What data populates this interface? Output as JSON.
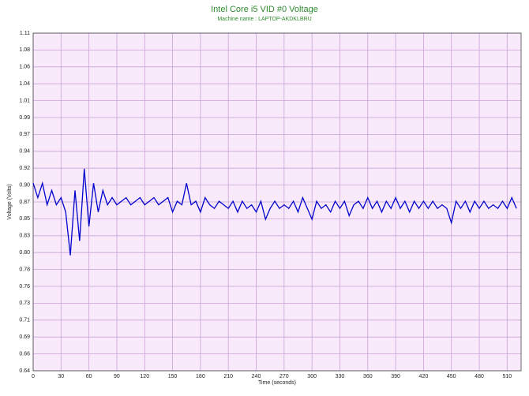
{
  "chart_data": {
    "type": "line",
    "title": "Intel Core i5 VID #0 Voltage",
    "subtitle": "Machine name : LAPTOP-AKDKLBRU",
    "xlabel": "Time (seconds)",
    "ylabel": "Voltage (Volts)",
    "grid": true,
    "xlim": [
      0,
      525
    ],
    "ylim": [
      0.64,
      1.108
    ],
    "xticks": [
      0,
      30,
      60,
      90,
      120,
      150,
      180,
      210,
      240,
      270,
      300,
      330,
      360,
      390,
      420,
      450,
      480,
      510
    ],
    "yticks": [
      0.64,
      {
        "value": 0.6634,
        "label": "0.66"
      },
      {
        "value": 0.6868,
        "label": "0.69"
      },
      {
        "value": 0.7102,
        "label": "0.71"
      },
      {
        "value": 0.7336,
        "label": "0.73"
      },
      {
        "value": 0.757,
        "label": "0.76"
      },
      {
        "value": 0.7804,
        "label": "0.78"
      },
      {
        "value": 0.8038,
        "label": "0.80"
      },
      {
        "value": 0.8272,
        "label": "0.83"
      },
      {
        "value": 0.8506,
        "label": "0.85"
      },
      {
        "value": 0.874,
        "label": "0.87"
      },
      {
        "value": 0.8974,
        "label": "0.90"
      },
      {
        "value": 0.9208,
        "label": "0.92"
      },
      {
        "value": 0.9442,
        "label": "0.94"
      },
      {
        "value": 0.9676,
        "label": "0.97"
      },
      {
        "value": 0.991,
        "label": "0.99"
      },
      {
        "value": 1.0144,
        "label": "1.01"
      },
      {
        "value": 1.0378,
        "label": "1.04"
      },
      {
        "value": 1.0612,
        "label": "1.06"
      },
      {
        "value": 1.0846,
        "label": "1.08"
      },
      {
        "value": 1.108,
        "label": "1.11"
      }
    ],
    "x": [
      0,
      5,
      10,
      15,
      20,
      25,
      30,
      35,
      40,
      45,
      50,
      55,
      60,
      65,
      70,
      75,
      80,
      85,
      90,
      95,
      100,
      105,
      110,
      115,
      120,
      125,
      130,
      135,
      140,
      145,
      150,
      155,
      160,
      165,
      170,
      175,
      180,
      185,
      190,
      195,
      200,
      205,
      210,
      215,
      220,
      225,
      230,
      235,
      240,
      245,
      250,
      255,
      260,
      265,
      270,
      275,
      280,
      285,
      290,
      295,
      300,
      305,
      310,
      315,
      320,
      325,
      330,
      335,
      340,
      345,
      350,
      355,
      360,
      365,
      370,
      375,
      380,
      385,
      390,
      395,
      400,
      405,
      410,
      415,
      420,
      425,
      430,
      435,
      440,
      445,
      450,
      455,
      460,
      465,
      470,
      475,
      480,
      485,
      490,
      495,
      500,
      505,
      510,
      515,
      520
    ],
    "series": [
      {
        "color": "#0000cc",
        "values": [
          0.9,
          0.88,
          0.9,
          0.87,
          0.89,
          0.87,
          0.88,
          0.86,
          0.8,
          0.89,
          0.82,
          0.92,
          0.84,
          0.9,
          0.86,
          0.89,
          0.87,
          0.88,
          0.87,
          0.875,
          0.88,
          0.87,
          0.875,
          0.88,
          0.87,
          0.875,
          0.88,
          0.87,
          0.875,
          0.88,
          0.86,
          0.875,
          0.87,
          0.9,
          0.87,
          0.875,
          0.86,
          0.88,
          0.87,
          0.865,
          0.875,
          0.87,
          0.865,
          0.875,
          0.86,
          0.875,
          0.865,
          0.87,
          0.86,
          0.875,
          0.85,
          0.865,
          0.875,
          0.865,
          0.87,
          0.865,
          0.875,
          0.86,
          0.88,
          0.865,
          0.85,
          0.875,
          0.865,
          0.87,
          0.86,
          0.875,
          0.865,
          0.875,
          0.855,
          0.87,
          0.875,
          0.865,
          0.88,
          0.865,
          0.875,
          0.86,
          0.875,
          0.865,
          0.88,
          0.865,
          0.875,
          0.86,
          0.875,
          0.865,
          0.875,
          0.865,
          0.875,
          0.865,
          0.87,
          0.865,
          0.845,
          0.875,
          0.865,
          0.875,
          0.86,
          0.875,
          0.865,
          0.875,
          0.865,
          0.87,
          0.865,
          0.875,
          0.865,
          0.88,
          0.865
        ]
      }
    ]
  }
}
